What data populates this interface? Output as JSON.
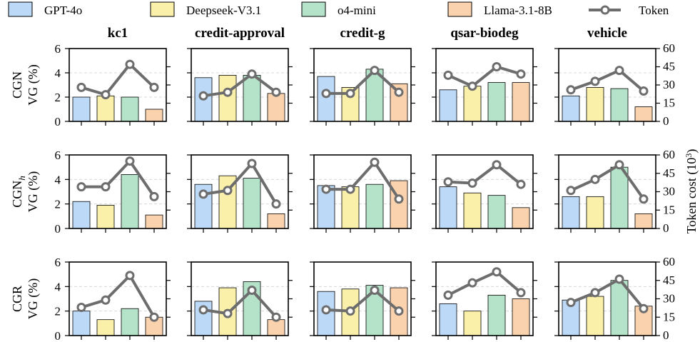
{
  "legend": [
    {
      "label": "GPT-4o",
      "color": "#bcdaf7"
    },
    {
      "label": "Deepseek-V3.1",
      "color": "#fbf0aa"
    },
    {
      "label": "o4-mini",
      "color": "#b5e3c9"
    },
    {
      "label": "Llama-3.1-8B",
      "color": "#fbd2ae"
    },
    {
      "label": "Token",
      "color": "#6d6d6d"
    }
  ],
  "row_labels": [
    {
      "line1": "CGN",
      "sub": "",
      "line2": "VG (%)"
    },
    {
      "line1": "CGN",
      "sub": "h",
      "line2": "VG (%)"
    },
    {
      "line1": "CGR",
      "sub": "",
      "line2": "VG (%)"
    }
  ],
  "right_axis_label": "Token cost (10",
  "right_axis_label_sup": "3",
  "right_axis_label_end": ")",
  "chart_data": {
    "type": "bar",
    "description": "Grid of 3x5 bar charts (VG %) with overlaid token-cost line (right axis).",
    "datasets": [
      "kc1",
      "credit-approval",
      "credit-g",
      "qsar-biodeg",
      "vehicle"
    ],
    "models": [
      "GPT-4o",
      "Deepseek-V3.1",
      "o4-mini",
      "Llama-3.1-8B"
    ],
    "left_axis": {
      "label": "VG (%)",
      "ylim": [
        0,
        6
      ],
      "ticks": [
        "0",
        "2",
        "4",
        "6"
      ]
    },
    "right_axis": {
      "label": "Token cost (10^3)",
      "ylim": [
        0,
        60
      ],
      "ticks": [
        "0",
        "15",
        "30",
        "45",
        "60"
      ]
    },
    "rows": [
      {
        "name": "CGN",
        "bars": [
          [
            2.0,
            2.1,
            2.0,
            1.0
          ],
          [
            3.6,
            3.8,
            3.8,
            2.3
          ],
          [
            3.7,
            2.8,
            4.3,
            3.1
          ],
          [
            2.6,
            2.9,
            3.2,
            3.2
          ],
          [
            2.1,
            2.8,
            2.7,
            1.2
          ]
        ],
        "token": [
          [
            28,
            22,
            47,
            28
          ],
          [
            21,
            24,
            39,
            24
          ],
          [
            23,
            23,
            42,
            24
          ],
          [
            38,
            29,
            45,
            39
          ],
          [
            26,
            33,
            42,
            25
          ]
        ]
      },
      {
        "name": "CGN_h",
        "bars": [
          [
            2.2,
            1.9,
            4.4,
            1.1
          ],
          [
            3.6,
            4.3,
            4.1,
            1.2
          ],
          [
            3.5,
            3.4,
            3.6,
            3.9
          ],
          [
            3.4,
            2.9,
            2.7,
            1.7
          ],
          [
            2.6,
            2.6,
            5.0,
            1.2
          ]
        ],
        "token": [
          [
            34,
            34,
            55,
            26
          ],
          [
            28,
            31,
            53,
            20
          ],
          [
            32,
            32,
            54,
            24
          ],
          [
            38,
            37,
            52,
            36
          ],
          [
            31,
            40,
            52,
            24
          ]
        ]
      },
      {
        "name": "CGR",
        "bars": [
          [
            2.0,
            1.3,
            2.2,
            1.5
          ],
          [
            2.8,
            3.9,
            4.4,
            1.3
          ],
          [
            3.6,
            3.8,
            4.1,
            3.9
          ],
          [
            2.6,
            2.0,
            3.3,
            3.0
          ],
          [
            2.9,
            3.2,
            4.5,
            2.4
          ]
        ],
        "token": [
          [
            23,
            29,
            49,
            15
          ],
          [
            21,
            18,
            37,
            15
          ],
          [
            21,
            20,
            37,
            20
          ],
          [
            33,
            43,
            52,
            35
          ],
          [
            27,
            35,
            46,
            22
          ]
        ]
      }
    ]
  }
}
